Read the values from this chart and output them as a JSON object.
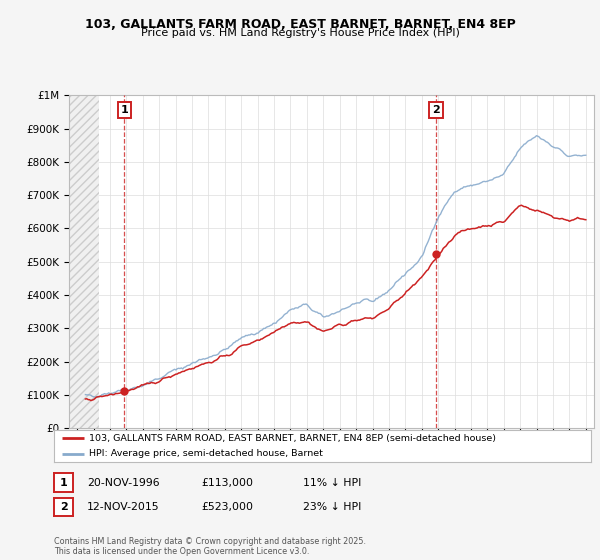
{
  "title1": "103, GALLANTS FARM ROAD, EAST BARNET, BARNET, EN4 8EP",
  "title2": "Price paid vs. HM Land Registry's House Price Index (HPI)",
  "legend_line1": "103, GALLANTS FARM ROAD, EAST BARNET, BARNET, EN4 8EP (semi-detached house)",
  "legend_line2": "HPI: Average price, semi-detached house, Barnet",
  "point1_label": "1",
  "point1_date": "20-NOV-1996",
  "point1_price": "£113,000",
  "point1_hpi": "11% ↓ HPI",
  "point1_year": 1996.88,
  "point1_value": 113000,
  "point2_label": "2",
  "point2_date": "12-NOV-2015",
  "point2_price": "£523,000",
  "point2_hpi": "23% ↓ HPI",
  "point2_year": 2015.87,
  "point2_value": 523000,
  "red_color": "#cc2222",
  "blue_color": "#88aacc",
  "background_color": "#f5f5f5",
  "plot_bg_color": "#ffffff",
  "grid_color": "#dddddd",
  "ylabel_ticks": [
    "£0",
    "£100K",
    "£200K",
    "£300K",
    "£400K",
    "£500K",
    "£600K",
    "£700K",
    "£800K",
    "£900K",
    "£1M"
  ],
  "ylabel_values": [
    0,
    100000,
    200000,
    300000,
    400000,
    500000,
    600000,
    700000,
    800000,
    900000,
    1000000
  ],
  "xmin": 1993.5,
  "xmax": 2025.5,
  "ymin": 0,
  "ymax": 1000000,
  "footnote": "Contains HM Land Registry data © Crown copyright and database right 2025.\nThis data is licensed under the Open Government Licence v3.0.",
  "hpi_years": [
    1994,
    1995,
    1996,
    1997,
    1998,
    1999,
    2000,
    2001,
    2002,
    2003,
    2004,
    2005,
    2006,
    2007,
    2008,
    2009,
    2010,
    2011,
    2012,
    2013,
    2014,
    2015,
    2016,
    2017,
    2018,
    2019,
    2020,
    2021,
    2022,
    2023,
    2024,
    2025
  ],
  "hpi_values": [
    95000,
    100000,
    108000,
    118000,
    130000,
    150000,
    175000,
    195000,
    215000,
    235000,
    270000,
    290000,
    315000,
    355000,
    370000,
    330000,
    355000,
    375000,
    380000,
    415000,
    465000,
    510000,
    640000,
    710000,
    730000,
    740000,
    760000,
    840000,
    880000,
    850000,
    815000,
    820000
  ],
  "prop_years": [
    1994,
    1995,
    1996,
    1997,
    1998,
    1999,
    2000,
    2001,
    2002,
    2003,
    2004,
    2005,
    2006,
    2007,
    2008,
    2009,
    2010,
    2011,
    2012,
    2013,
    2014,
    2015,
    2016,
    2017,
    2018,
    2019,
    2020,
    2021,
    2022,
    2023,
    2024,
    2025
  ],
  "prop_values": [
    85000,
    90000,
    100000,
    113000,
    125000,
    143000,
    165000,
    182000,
    198000,
    215000,
    245000,
    265000,
    290000,
    320000,
    320000,
    290000,
    310000,
    325000,
    330000,
    360000,
    405000,
    450000,
    523000,
    580000,
    600000,
    610000,
    620000,
    670000,
    655000,
    635000,
    625000,
    630000
  ]
}
